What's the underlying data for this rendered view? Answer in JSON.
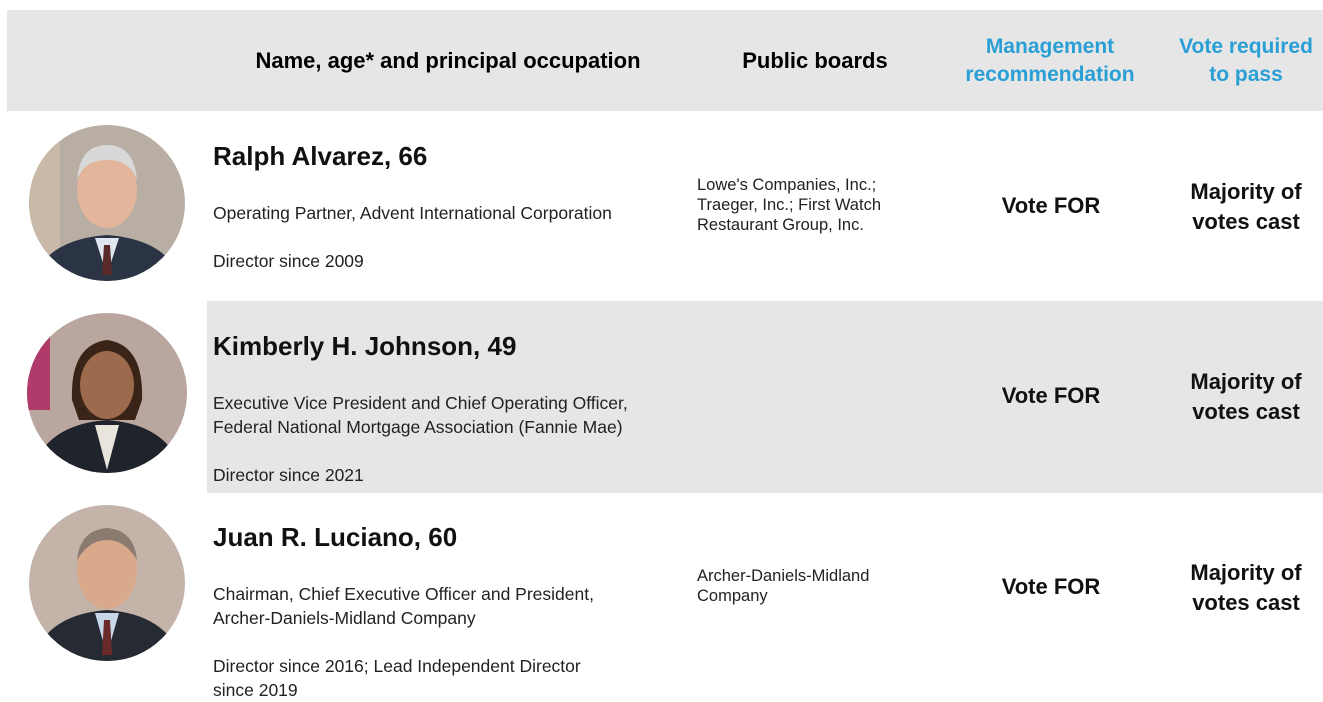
{
  "header": {
    "columns": [
      [
        "Name, age* and principal occupation"
      ],
      [
        "Public boards"
      ],
      [
        "Management",
        "recommendation"
      ],
      [
        "Vote required",
        "to pass"
      ]
    ]
  },
  "rows": [
    {
      "name": "Ralph Alvarez, 66",
      "occupation": [
        "Operating Partner, Advent International Corporation"
      ],
      "director": [
        "Director since 2009"
      ],
      "boards": [
        "Lowe's Companies, Inc.;",
        "Traeger, Inc.; First Watch",
        "Restaurant Group, Inc."
      ],
      "recommendation": "Vote FOR",
      "vote_required": [
        "Majority of",
        "votes cast"
      ]
    },
    {
      "name": "Kimberly H. Johnson, 49",
      "occupation": [
        "Executive Vice President and Chief Operating Officer,",
        "Federal National Mortgage Association (Fannie Mae)"
      ],
      "director": [
        "Director since 2021"
      ],
      "recommendation": "Vote FOR",
      "vote_required": [
        "Majority of",
        "votes cast"
      ]
    },
    {
      "name": "Juan R. Luciano, 60",
      "occupation": [
        "Chairman, Chief Executive Officer and President,",
        "Archer-Daniels-Midland Company"
      ],
      "director": [
        "Director since 2016; Lead Independent Director",
        "since 2019"
      ],
      "boards": [
        "Archer-Daniels-Midland",
        "Company"
      ],
      "recommendation": "Vote FOR",
      "vote_required": [
        "Majority of",
        "votes cast"
      ]
    }
  ]
}
